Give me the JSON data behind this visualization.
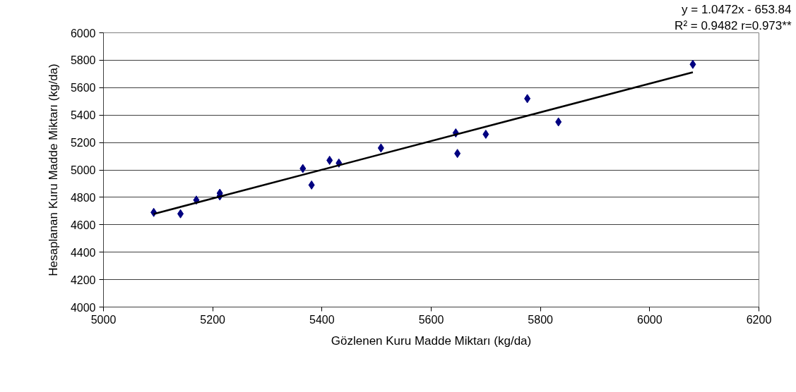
{
  "chart_data": {
    "type": "scatter",
    "xlabel": "Gözlenen Kuru Madde Miktarı (kg/da)",
    "ylabel": "Hesaplanan Kuru Madde Miktarı (kg/da)",
    "annotations": [
      "y = 1.0472x - 653.84",
      "R² = 0.9482 r=0.973**"
    ],
    "xlim": [
      5000,
      6200
    ],
    "xticks": [
      5000,
      5200,
      5400,
      5600,
      5800,
      6000,
      6200
    ],
    "ylim": [
      4000,
      6000
    ],
    "yticks": [
      4000,
      4200,
      4400,
      4600,
      4800,
      5000,
      5200,
      5400,
      5600,
      5800,
      6000
    ],
    "grid": "y",
    "series": [
      {
        "marker": "diamond",
        "color": "#000080",
        "x": [
          5092,
          5141,
          5170,
          5213,
          5213,
          5365,
          5381,
          5414,
          5431,
          5508,
          5645,
          5648,
          5700,
          5776,
          5833,
          6079
        ],
        "values": [
          4690,
          4680,
          4780,
          4830,
          4810,
          5010,
          4890,
          5070,
          5050,
          5160,
          5270,
          5120,
          5260,
          5520,
          5350,
          5770
        ]
      },
      {
        "type": "line",
        "color": "#000000",
        "x": [
          5092,
          6079
        ],
        "values": [
          4679,
          5712
        ],
        "line_style": "solid"
      }
    ]
  }
}
